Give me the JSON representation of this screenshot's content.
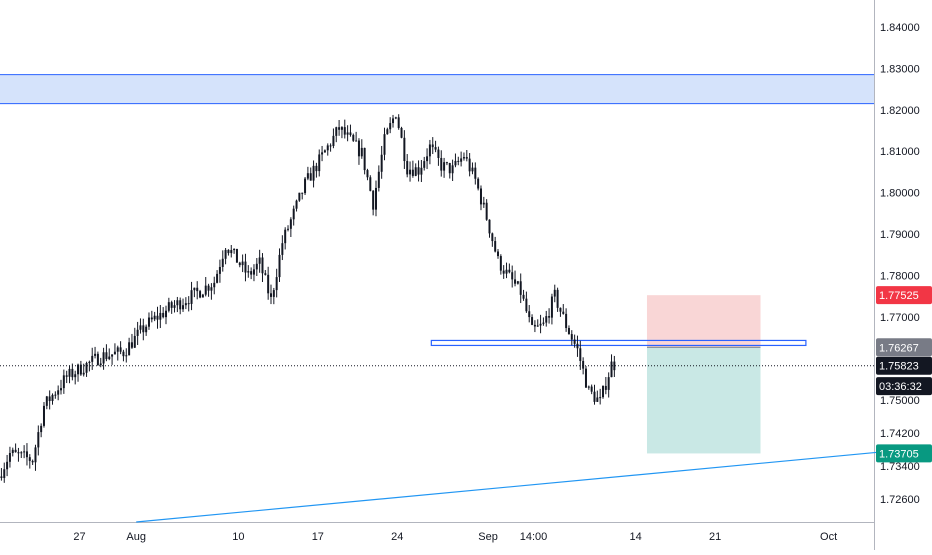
{
  "chart_data": {
    "type": "candlestick",
    "x_axis": {
      "range": [
        "2020-07-20",
        "2020-10-05"
      ],
      "tick_labels": [
        {
          "label": "27",
          "date": "2020-07-27"
        },
        {
          "label": "Aug",
          "date": "2020-08-01"
        },
        {
          "label": "10",
          "date": "2020-08-10"
        },
        {
          "label": "17",
          "date": "2020-08-17"
        },
        {
          "label": "24",
          "date": "2020-08-24"
        },
        {
          "label": "Sep",
          "date": "2020-09-01"
        },
        {
          "label": "14:00",
          "date": "2020-09-05"
        },
        {
          "label": "14",
          "date": "2020-09-14"
        },
        {
          "label": "21",
          "date": "2020-09-21"
        },
        {
          "label": "Oct",
          "date": "2020-10-01"
        }
      ]
    },
    "y_axis": {
      "range": [
        1.7205,
        1.8465
      ],
      "tick_labels": [
        "1.84000",
        "1.83000",
        "1.82000",
        "1.81000",
        "1.80000",
        "1.79000",
        "1.78000",
        "1.77000",
        "1.75000",
        "1.74200",
        "1.73400",
        "1.72600"
      ],
      "tick_values": [
        1.84,
        1.83,
        1.82,
        1.81,
        1.8,
        1.79,
        1.78,
        1.77,
        1.75,
        1.742,
        1.734,
        1.726
      ]
    },
    "price_path": [
      [
        "2020-07-20",
        1.7315
      ],
      [
        "2020-07-21",
        1.737
      ],
      [
        "2020-07-23",
        1.7355
      ],
      [
        "2020-07-24",
        1.7485
      ],
      [
        "2020-07-26",
        1.7555
      ],
      [
        "2020-07-29",
        1.7605
      ],
      [
        "2020-07-31",
        1.7615
      ],
      [
        "2020-08-02",
        1.768
      ],
      [
        "2020-08-04",
        1.772
      ],
      [
        "2020-08-06",
        1.775
      ],
      [
        "2020-08-08",
        1.7785
      ],
      [
        "2020-08-09",
        1.7875
      ],
      [
        "2020-08-11",
        1.78
      ],
      [
        "2020-08-12",
        1.783
      ],
      [
        "2020-08-13",
        1.774
      ],
      [
        "2020-08-14",
        1.788
      ],
      [
        "2020-08-16",
        1.802
      ],
      [
        "2020-08-18",
        1.811
      ],
      [
        "2020-08-19",
        1.8155
      ],
      [
        "2020-08-20",
        1.8125
      ],
      [
        "2020-08-21",
        1.8095
      ],
      [
        "2020-08-22",
        1.7975
      ],
      [
        "2020-08-23",
        1.8125
      ],
      [
        "2020-08-24",
        1.8195
      ],
      [
        "2020-08-25",
        1.806
      ],
      [
        "2020-08-26",
        1.8055
      ],
      [
        "2020-08-27",
        1.811
      ],
      [
        "2020-08-28",
        1.8065
      ],
      [
        "2020-08-29",
        1.8055
      ],
      [
        "2020-08-30",
        1.809
      ],
      [
        "2020-08-31",
        1.803
      ],
      [
        "2020-09-01",
        1.794
      ],
      [
        "2020-09-02",
        1.7835
      ],
      [
        "2020-09-03",
        1.7795
      ],
      [
        "2020-09-04",
        1.776
      ],
      [
        "2020-09-05",
        1.7665
      ],
      [
        "2020-09-06",
        1.768
      ],
      [
        "2020-09-07",
        1.775
      ],
      [
        "2020-09-08",
        1.768
      ],
      [
        "2020-09-09",
        1.762
      ],
      [
        "2020-09-10",
        1.752
      ],
      [
        "2020-09-11",
        1.7495
      ],
      [
        "2020-09-12",
        1.7585
      ]
    ],
    "zones": [
      {
        "name": "resistance-zone",
        "y_top": 1.8285,
        "y_bottom": 1.8215,
        "color": "#d5e3fb",
        "border": "#2962ff"
      },
      {
        "name": "support-level",
        "y": 1.7636,
        "x_start": "2020-08-27",
        "x_end": "2020-09-29",
        "color": "#2962ff"
      }
    ],
    "trendline": {
      "x_start": "2020-08-01",
      "y_start": 1.7205,
      "x_end": "2020-10-06",
      "y_end": 1.7375,
      "color": "#2196f3"
    },
    "position": {
      "x_start": "2020-09-15",
      "x_end": "2020-09-25",
      "entry": 1.76267,
      "stop": 1.77525,
      "target": 1.73705,
      "loss_color": "#f9d6d6",
      "profit_color": "#c9e8e5"
    },
    "current_price_line": 1.75823,
    "price_labels": [
      {
        "text": "1.77525",
        "value": 1.77525,
        "bg": "#f23645",
        "fg": "#ffffff"
      },
      {
        "text": "1.76267",
        "value": 1.76267,
        "bg": "#787b86",
        "fg": "#ffffff"
      },
      {
        "text": "1.75823",
        "value": 1.75823,
        "bg": "#131722",
        "fg": "#ffffff"
      },
      {
        "text": "1.73705",
        "value": 1.73705,
        "bg": "#089981",
        "fg": "#ffffff"
      }
    ],
    "countdown_label": {
      "text": "03:36:32",
      "value": 1.7533,
      "bg": "#131722",
      "fg": "#ffffff"
    }
  }
}
